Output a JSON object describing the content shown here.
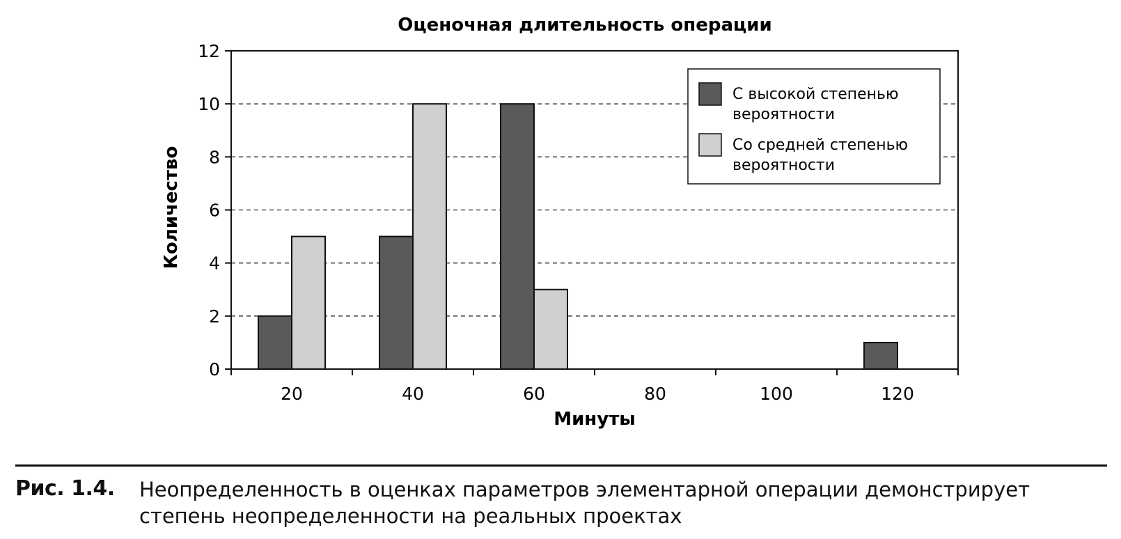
{
  "chart_data": {
    "type": "bar",
    "title": "Оценочная длительность операции",
    "xlabel": "Минуты",
    "ylabel": "Количество",
    "categories": [
      "20",
      "40",
      "60",
      "80",
      "100",
      "120"
    ],
    "yticks": [
      "0",
      "2",
      "4",
      "6",
      "8",
      "10",
      "12"
    ],
    "ylim": [
      0,
      12
    ],
    "grid": "horizontal dashed",
    "legend_position": "top-right",
    "series": [
      {
        "name": "С высокой степенью вероятности",
        "values": [
          2,
          5,
          10,
          0,
          0,
          1
        ],
        "color": "#5a5a5a",
        "legend_lines": [
          "С высокой степенью",
          "вероятности"
        ]
      },
      {
        "name": "Со средней степенью вероятности",
        "values": [
          5,
          10,
          3,
          0,
          0,
          0
        ],
        "color": "#d0d0d0",
        "legend_lines": [
          "Со средней степенью",
          "вероятности"
        ]
      }
    ]
  },
  "caption": {
    "label": "Рис. 1.4.",
    "text": "Неопределенность в оценках параметров элементарной операции демонстрирует степень неопределенности на реальных проектах"
  }
}
